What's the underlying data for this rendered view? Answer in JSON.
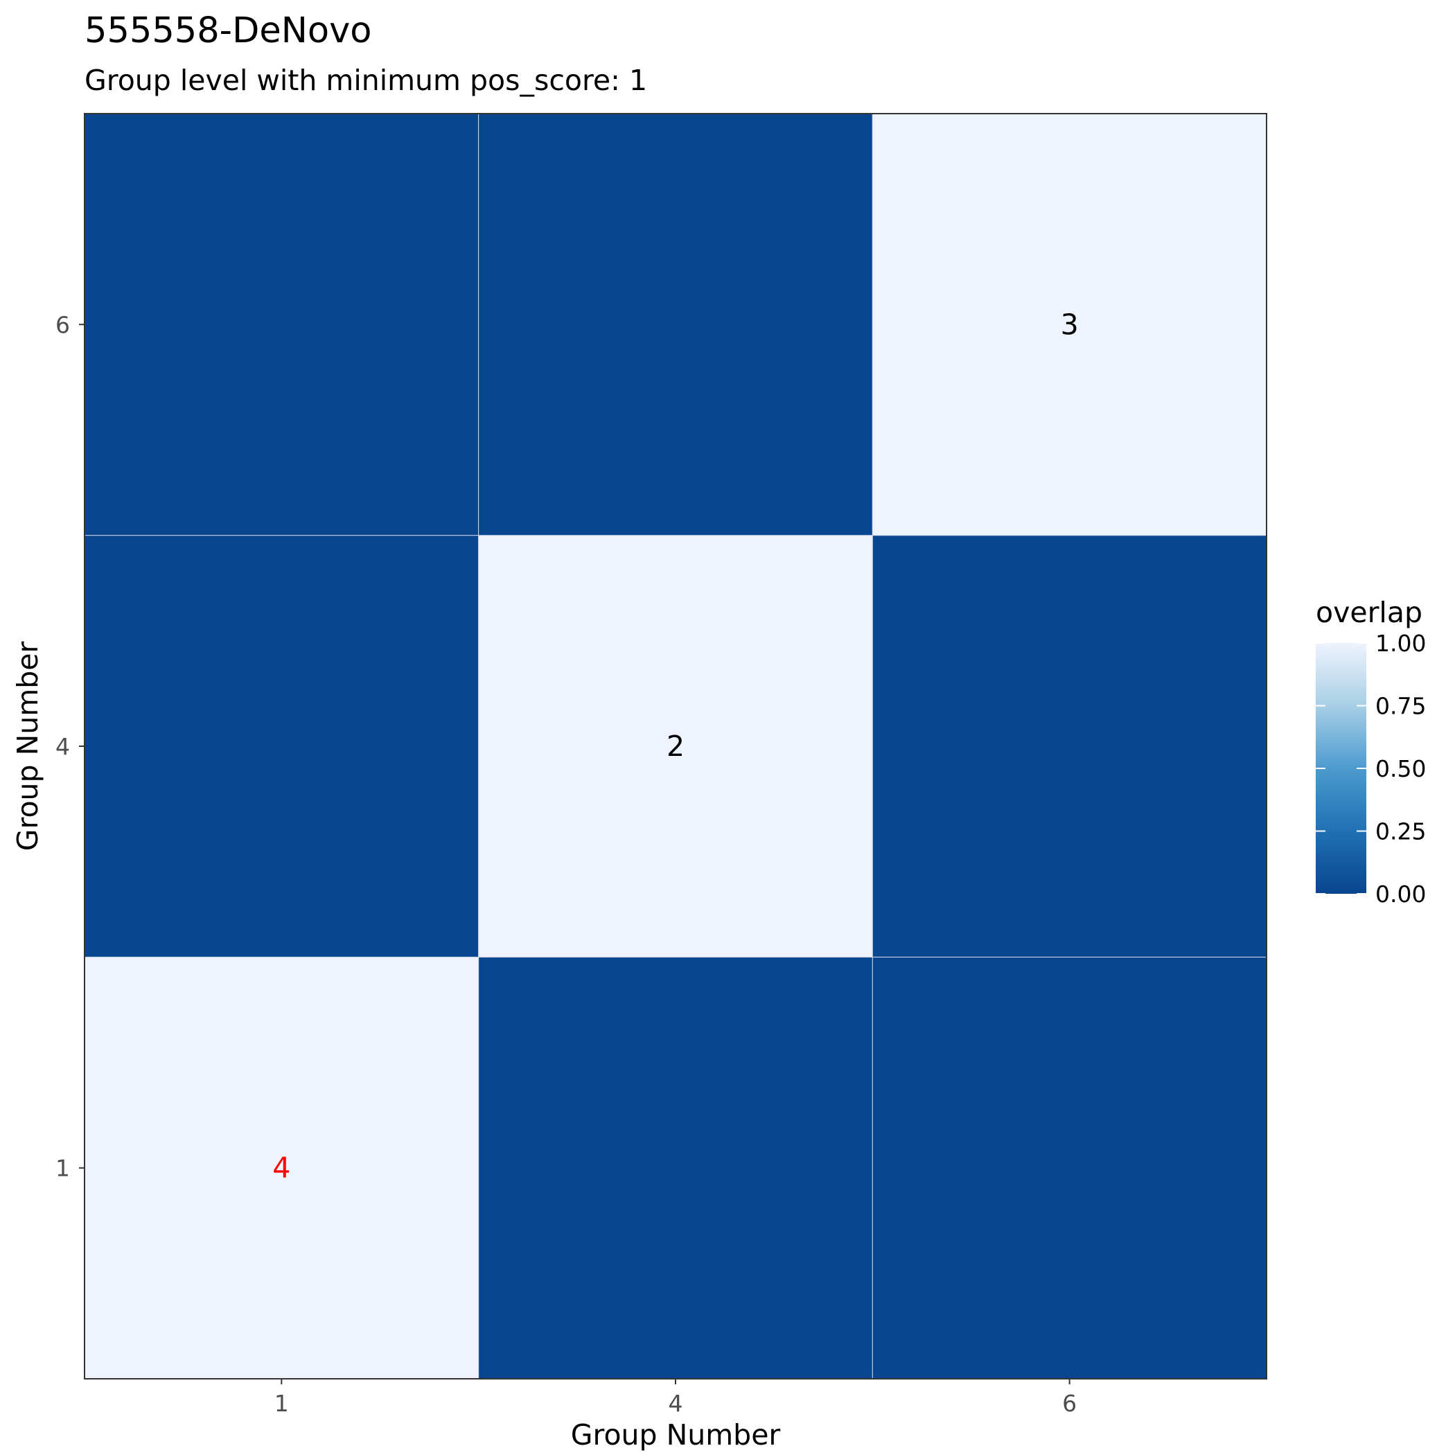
{
  "chart_data": {
    "type": "heatmap",
    "title": "555558-DeNovo",
    "subtitle": "Group level with minimum pos_score: 1",
    "xlabel": "Group Number",
    "ylabel": "Group Number",
    "x_categories": [
      "1",
      "4",
      "6"
    ],
    "y_categories": [
      "1",
      "4",
      "6"
    ],
    "cells": [
      {
        "x": "1",
        "y": "1",
        "value": 1.0,
        "label": "4",
        "label_color": "#ff0000"
      },
      {
        "x": "4",
        "y": "1",
        "value": 0.0,
        "label": "",
        "label_color": "#000000"
      },
      {
        "x": "6",
        "y": "1",
        "value": 0.0,
        "label": "",
        "label_color": "#000000"
      },
      {
        "x": "1",
        "y": "4",
        "value": 0.0,
        "label": "",
        "label_color": "#000000"
      },
      {
        "x": "4",
        "y": "4",
        "value": 1.0,
        "label": "2",
        "label_color": "#000000"
      },
      {
        "x": "6",
        "y": "4",
        "value": 0.0,
        "label": "",
        "label_color": "#000000"
      },
      {
        "x": "1",
        "y": "6",
        "value": 0.0,
        "label": "",
        "label_color": "#000000"
      },
      {
        "x": "4",
        "y": "6",
        "value": 0.0,
        "label": "",
        "label_color": "#000000"
      },
      {
        "x": "6",
        "y": "6",
        "value": 1.0,
        "label": "3",
        "label_color": "#000000"
      }
    ],
    "legend": {
      "title": "overlap",
      "range": [
        0,
        1
      ],
      "ticks": [
        "0.00",
        "0.25",
        "0.50",
        "0.75",
        "1.00"
      ],
      "tick_values": [
        0,
        0.25,
        0.5,
        0.75,
        1
      ],
      "colors": {
        "low": "#08468f",
        "mid": "#4c9bcf",
        "high": "#eef3fd"
      },
      "placement": "right"
    },
    "grid": false
  }
}
